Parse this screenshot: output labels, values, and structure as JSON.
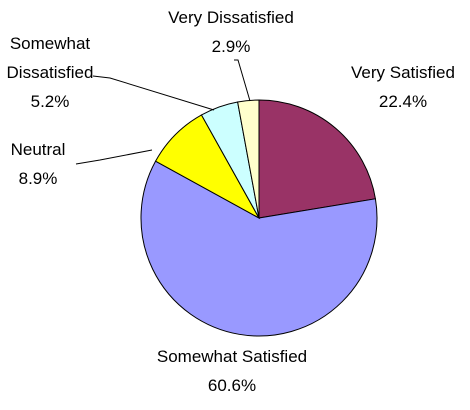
{
  "chart_data": {
    "type": "pie",
    "categories": [
      "Very Satisfied",
      "Somewhat Satisfied",
      "Neutral",
      "Somewhat Dissatisfied",
      "Very Dissatisfied"
    ],
    "values": [
      22.4,
      60.6,
      8.9,
      5.2,
      2.9
    ],
    "value_labels": [
      "22.4%",
      "60.6%",
      "8.9%",
      "5.2%",
      "2.9%"
    ],
    "colors": [
      "#993366",
      "#9999ff",
      "#ffff00",
      "#ccffff",
      "#ffffcc"
    ]
  }
}
